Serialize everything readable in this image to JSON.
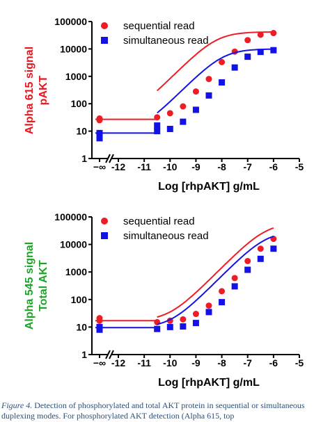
{
  "chart_data": [
    {
      "type": "scatter",
      "xlabel": "Log [rhpAKT] g/mL",
      "ylabel": [
        "Alpha 615 signal",
        "pAKT"
      ],
      "ylabel_color": "#e8141e",
      "xlim": [
        -12.5,
        -5
      ],
      "ylim": [
        1,
        100000
      ],
      "y_scale": "log",
      "x_ticks": [
        -12,
        -11,
        -10,
        -9,
        -8,
        -7,
        -6,
        -5
      ],
      "x_tick_labels": [
        "-12",
        "-11",
        "-10",
        "-9",
        "-8",
        "-7",
        "-6",
        "-5"
      ],
      "x_zero_label": "−∞",
      "y_ticks": [
        1,
        10,
        100,
        1000,
        10000,
        100000
      ],
      "y_tick_labels": [
        "1",
        "10",
        "100",
        "1000",
        "10000",
        "100000"
      ],
      "legend_position": "top-left",
      "series": [
        {
          "name": "sequential read",
          "color": "#ee1c25",
          "marker": "circle",
          "zero_points": [
            25,
            29
          ],
          "x": [
            -10.5,
            -10,
            -9.5,
            -9,
            -8.5,
            -8,
            -7.5,
            -7,
            -6.5,
            -6
          ],
          "y": [
            32,
            45,
            80,
            280,
            800,
            3300,
            8000,
            21000,
            33000,
            38000
          ],
          "fit": {
            "bottom": 27,
            "top": 42000,
            "logEC50": -8.2,
            "hill": 0.95
          }
        },
        {
          "name": "simultaneous read",
          "color": "#1212e6",
          "marker": "square",
          "zero_points": [
            5.5,
            8.5
          ],
          "x": [
            -10.5,
            -10.5,
            -10,
            -9.5,
            -9,
            -8.5,
            -8,
            -7.5,
            -7,
            -6.5,
            -6
          ],
          "y": [
            10,
            16,
            12,
            22,
            60,
            200,
            600,
            2100,
            5200,
            7800,
            9000
          ],
          "fit": {
            "bottom": 8.5,
            "top": 10000,
            "logEC50": -7.95,
            "hill": 0.95
          }
        }
      ]
    },
    {
      "type": "scatter",
      "xlabel": "Log [rhpAKT] g/mL",
      "ylabel": [
        "Alpha 545 signal",
        "Total AKT"
      ],
      "ylabel_color": "#1ca328",
      "xlim": [
        -12.5,
        -5
      ],
      "ylim": [
        1,
        100000
      ],
      "y_scale": "log",
      "x_ticks": [
        -12,
        -11,
        -10,
        -9,
        -8,
        -7,
        -6,
        -5
      ],
      "x_tick_labels": [
        "-12",
        "-11",
        "-10",
        "-9",
        "-8",
        "-7",
        "-6",
        "-5"
      ],
      "x_zero_label": "−∞",
      "y_ticks": [
        1,
        10,
        100,
        1000,
        10000,
        100000
      ],
      "y_tick_labels": [
        "1",
        "10",
        "100",
        "1000",
        "10000",
        "100000"
      ],
      "legend_position": "top-left",
      "series": [
        {
          "name": "sequential read",
          "color": "#ee1c25",
          "marker": "circle",
          "zero_points": [
            17,
            21
          ],
          "x": [
            -10.5,
            -10,
            -9.5,
            -9,
            -8.5,
            -8,
            -7.5,
            -7,
            -6.5,
            -6
          ],
          "y": [
            15,
            17,
            19,
            30,
            60,
            200,
            600,
            2500,
            7000,
            16000
          ],
          "fit": {
            "bottom": 17,
            "top": 60000,
            "logEC50": -6.3,
            "hill": 0.95
          }
        },
        {
          "name": "simultaneous read",
          "color": "#1212e6",
          "marker": "square",
          "zero_points": [
            8,
            10
          ],
          "x": [
            -10.5,
            -10,
            -9.5,
            -9,
            -8.5,
            -8,
            -7.5,
            -7,
            -6.5,
            -6
          ],
          "y": [
            8.5,
            10,
            10.5,
            14,
            35,
            80,
            300,
            1200,
            3000,
            7000
          ],
          "fit": {
            "bottom": 9.5,
            "top": 30000,
            "logEC50": -6.3,
            "hill": 0.95
          }
        }
      ]
    }
  ],
  "caption": {
    "lead": "Figure 4.",
    "text": " Detection of phosphorylated and total AKT protein in sequential or simultaneous duplexing modes. For phosphorylated AKT detection (Alpha 615, top"
  }
}
